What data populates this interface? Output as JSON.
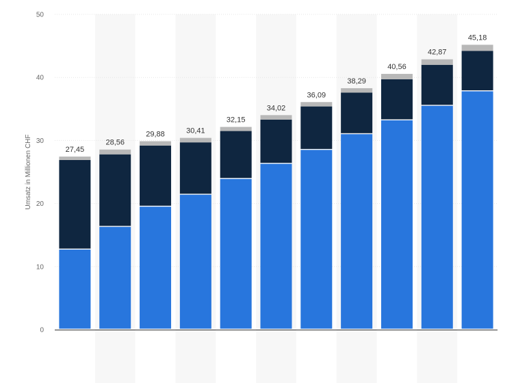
{
  "chart_data": {
    "type": "bar",
    "stacked": true,
    "categories": [
      "",
      "",
      "",
      "",
      "",
      "",
      "",
      "",
      "",
      "",
      ""
    ],
    "series": [
      {
        "values": [
          12.7,
          16.3,
          19.5,
          21.4,
          23.9,
          26.3,
          28.5,
          31.0,
          33.2,
          35.5,
          37.8
        ],
        "color": "#2876dd"
      },
      {
        "values": [
          14.2,
          11.5,
          9.7,
          8.3,
          7.6,
          7.0,
          6.9,
          6.6,
          6.5,
          6.5,
          6.4
        ],
        "color": "#0f2640"
      },
      {
        "values": [
          0.55,
          0.76,
          0.68,
          0.71,
          0.65,
          0.72,
          0.69,
          0.69,
          0.86,
          0.87,
          0.98
        ],
        "color": "#b8b8b8"
      }
    ],
    "totals": [
      "27,45",
      "28,56",
      "29,88",
      "30,41",
      "32,15",
      "34,02",
      "36,09",
      "38,29",
      "40,56",
      "42,87",
      "45,18"
    ],
    "ylabel": "Umsatz in Millionen CHF",
    "ylim": [
      0,
      50
    ],
    "yticks": [
      0,
      10,
      20,
      30,
      40,
      50
    ],
    "grid": true,
    "legend": "none"
  }
}
